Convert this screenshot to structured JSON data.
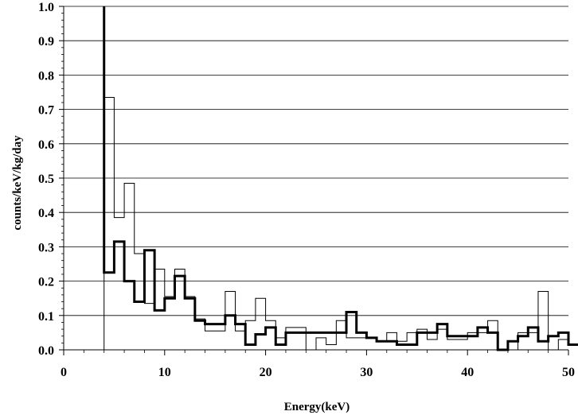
{
  "chart_data": {
    "type": "line",
    "title": "",
    "xlabel": "Energy(keV)",
    "ylabel": "counts/keV/kg/day",
    "xlim": [
      0,
      50
    ],
    "ylim": [
      0,
      1.0
    ],
    "x_ticks": [
      0,
      10,
      20,
      30,
      40,
      50
    ],
    "y_ticks": [
      0.0,
      0.1,
      0.2,
      0.3,
      0.4,
      0.5,
      0.6,
      0.7,
      0.8,
      0.9,
      1.0
    ],
    "x_tick_labels": [
      "0",
      "10",
      "20",
      "30",
      "40",
      "50"
    ],
    "y_tick_labels": [
      "0.0",
      "0.1",
      "0.2",
      "0.3",
      "0.4",
      "0.5",
      "0.6",
      "0.7",
      "0.8",
      "0.9",
      "1.0"
    ],
    "grid": "horizontal",
    "legend": "none",
    "bin_width": 1,
    "series": [
      {
        "style": "thin",
        "color": "#000000",
        "bin_edges_start": 4,
        "values": [
          0.735,
          0.385,
          0.485,
          0.28,
          0.135,
          0.235,
          0.155,
          0.235,
          0.155,
          0.09,
          0.055,
          0.055,
          0.17,
          0.055,
          0.085,
          0.15,
          0.085,
          0.035,
          0.065,
          0.065,
          0.0,
          0.035,
          0.015,
          0.085,
          0.035,
          0.035,
          0.035,
          0.025,
          0.05,
          0.025,
          0.05,
          0.06,
          0.03,
          0.06,
          0.03,
          0.03,
          0.05,
          0.05,
          0.085,
          0.0,
          0.0,
          0.05,
          0.05,
          0.17,
          0.0,
          0.03
        ]
      },
      {
        "style": "thick",
        "color": "#000000",
        "bin_edges_start": 4,
        "spike_start": 1.0,
        "values": [
          0.225,
          0.315,
          0.2,
          0.14,
          0.29,
          0.115,
          0.15,
          0.215,
          0.15,
          0.085,
          0.075,
          0.075,
          0.1,
          0.075,
          0.015,
          0.045,
          0.065,
          0.015,
          0.05,
          0.05,
          0.05,
          0.05,
          0.05,
          0.05,
          0.11,
          0.05,
          0.035,
          0.025,
          0.025,
          0.015,
          0.015,
          0.05,
          0.05,
          0.075,
          0.04,
          0.04,
          0.04,
          0.065,
          0.05,
          0.0,
          0.025,
          0.04,
          0.065,
          0.025,
          0.04,
          0.05,
          0.015
        ]
      }
    ]
  }
}
